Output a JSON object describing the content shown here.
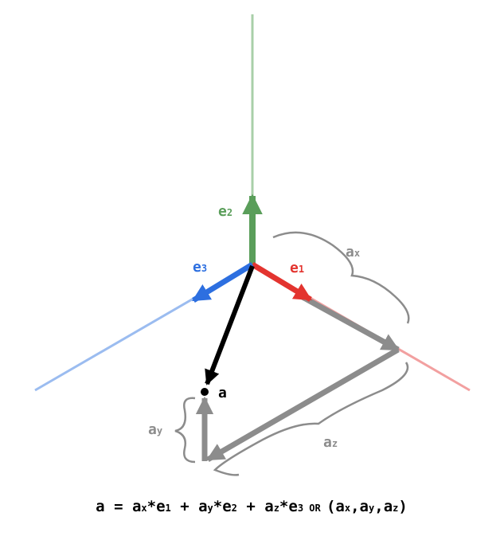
{
  "colors": {
    "e1": "#e3342f",
    "e1_axis": "#f2a0a0",
    "e2": "#5a9e5a",
    "e2_axis": "#a8cfa8",
    "e3": "#2d6fe0",
    "e3_axis": "#9bbcf0",
    "component": "#8c8c8c",
    "vector_a": "#000000"
  },
  "labels": {
    "e1": {
      "base": "e",
      "sub": "1"
    },
    "e2": {
      "base": "e",
      "sub": "2"
    },
    "e3": {
      "base": "e",
      "sub": "3"
    },
    "ax": {
      "base": "a",
      "sub": "x"
    },
    "ay": {
      "base": "a",
      "sub": "y"
    },
    "az": {
      "base": "a",
      "sub": "z"
    },
    "a": "a"
  },
  "equation": {
    "lhs": "a",
    "eq": " = ",
    "t1": "a",
    "t1s": "x",
    "t1m": "*e",
    "t1e": "1",
    "p1": " + ",
    "t2": "a",
    "t2s": "y",
    "t2m": "*e",
    "t2e": "2",
    "p2": " + ",
    "t3": "a",
    "t3s": "z",
    "t3m": "*e",
    "t3e": "3",
    "or": " OR ",
    "tuple_open": "(",
    "c1": "a",
    "c1s": "x",
    "comma1": ",",
    "c2": "a",
    "c2s": "y",
    "comma2": ",",
    "c3": "a",
    "c3s": "z",
    "tuple_close": ")"
  }
}
